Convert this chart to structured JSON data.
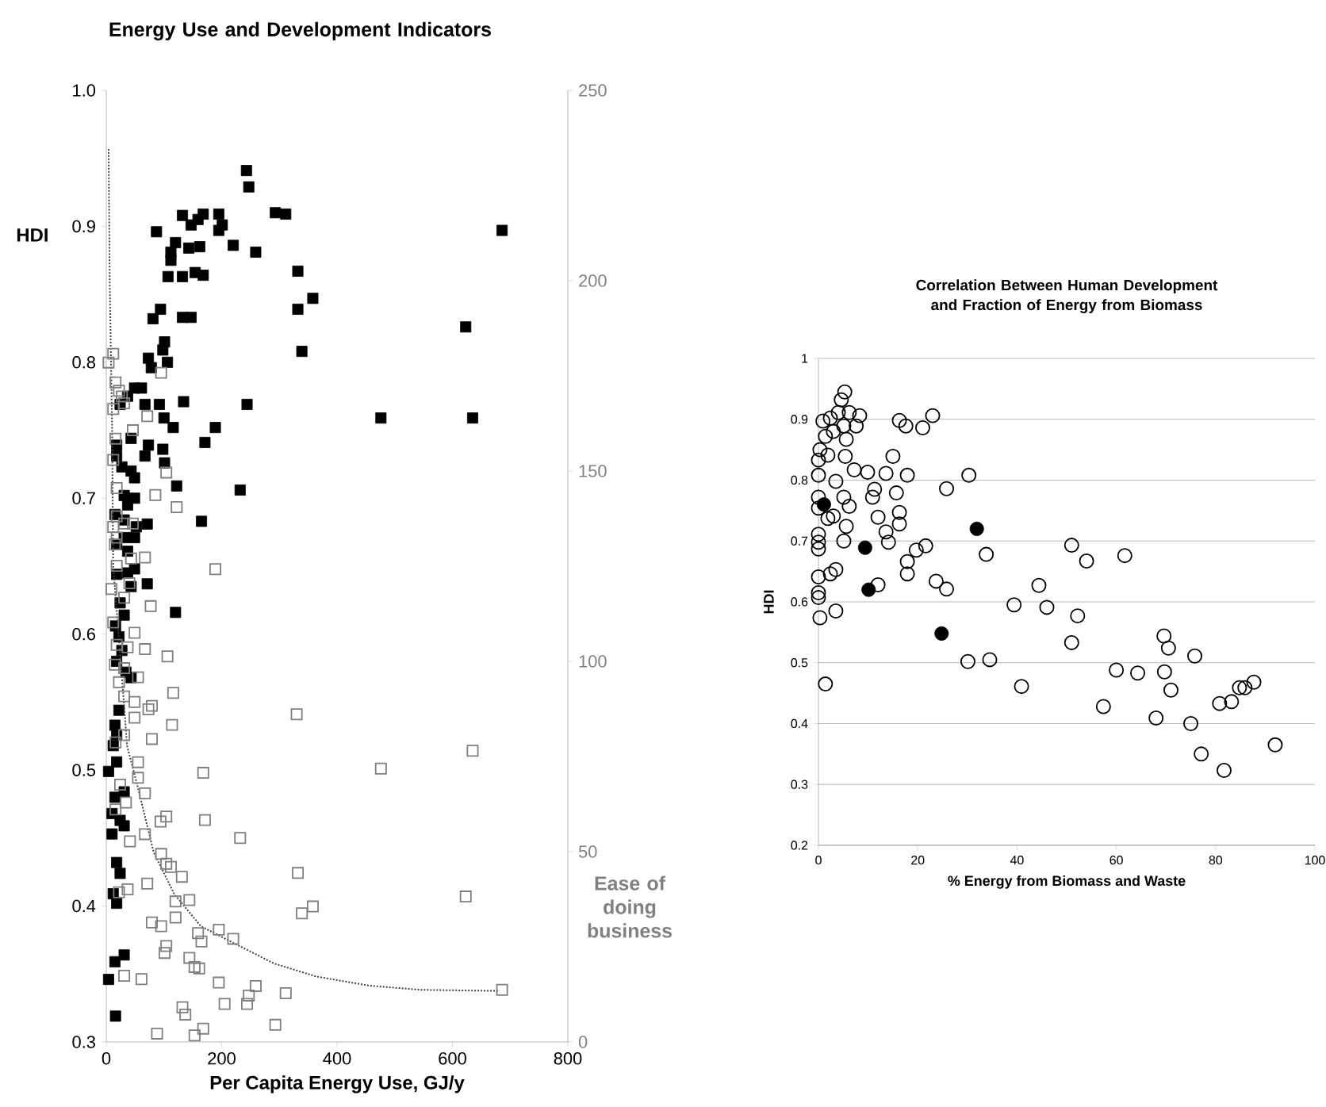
{
  "chart_data": [
    {
      "type": "scatter",
      "title": "Energy Use and Development Indicators",
      "xlabel": "Per Capita Energy Use, GJ/y",
      "ylabel": "HDI",
      "y2label": "Ease of doing business",
      "xlim": [
        0,
        800
      ],
      "xticks": [
        0,
        200,
        400,
        600,
        800
      ],
      "ylim": [
        0.3,
        1.0
      ],
      "yticks": [
        0.3,
        0.4,
        0.5,
        0.6,
        0.7,
        0.8,
        0.9,
        {
          "value": 1.0,
          "label": "1.0"
        }
      ],
      "y2lim": [
        0,
        250
      ],
      "y2ticks": [
        0,
        50,
        100,
        150,
        200,
        250
      ],
      "series": [
        {
          "axis": "y2",
          "color": "#7f7f7f",
          "marker": "square",
          "x": [
            4,
            12,
            16,
            22,
            27,
            12,
            31,
            95,
            71,
            16,
            46,
            12,
            18,
            104,
            122,
            85,
            18,
            12,
            31,
            46,
            18,
            15,
            43,
            67,
            18,
            9,
            189,
            40,
            31,
            77,
            12,
            49,
            37,
            18,
            67,
            106,
            15,
            31,
            22,
            55,
            116,
            31,
            49,
            79,
            73,
            114,
            49,
            330,
            79,
            31,
            635,
            16,
            55,
            476,
            168,
            55,
            24,
            67,
            34,
            16,
            104,
            94,
            171,
            67,
            232,
            41,
            95,
            104,
            112,
            131,
            332,
            71,
            120,
            144,
            623,
            37,
            22,
            79,
            95,
            120,
            195,
            220,
            159,
            165,
            339,
            358,
            104,
            101,
            144,
            153,
            161,
            31,
            61,
            195,
            686,
            259,
            247,
            244,
            311,
            205,
            132,
            137,
            293,
            168,
            153,
            88
          ],
          "values": [
            178.5,
            180.8,
            173.3,
            171.1,
            169.6,
            166.3,
            167.8,
            175.8,
            164.4,
            158.5,
            160.7,
            152.9,
            145.5,
            149.6,
            140.5,
            143.7,
            138.1,
            135.3,
            136.2,
            136.2,
            132.5,
            130.7,
            127.0,
            127.3,
            125.1,
            119.0,
            124.2,
            120.5,
            116.7,
            114.5,
            110.2,
            107.5,
            103.7,
            104.3,
            103.2,
            101.3,
            99.1,
            98.2,
            94.5,
            95.8,
            91.7,
            90.8,
            89.3,
            88.3,
            87.4,
            83.3,
            85.2,
            86.1,
            79.6,
            80.6,
            76.5,
            78.7,
            73.5,
            71.8,
            70.7,
            69.4,
            67.6,
            65.3,
            62.9,
            61.1,
            59.2,
            57.9,
            58.3,
            54.6,
            53.6,
            52.7,
            49.4,
            46.8,
            46.0,
            43.4,
            44.4,
            41.6,
            36.9,
            37.3,
            38.2,
            40.1,
            39.3,
            31.4,
            30.4,
            32.7,
            29.5,
            27.1,
            28.6,
            26.4,
            33.8,
            35.6,
            25.2,
            23.4,
            22.1,
            19.7,
            19.3,
            17.4,
            16.5,
            15.6,
            13.7,
            14.7,
            12.2,
            10.0,
            12.8,
            10.0,
            9.1,
            7.2,
            4.5,
            3.5,
            1.7,
            2.2
          ]
        },
        {
          "color": "#000000",
          "marker": "square",
          "x": [
            243,
            247,
            87,
            132,
            147,
            159,
            168,
            195,
            201,
            195,
            120,
            112,
            112,
            143,
            162,
            220,
            259,
            293,
            311,
            686,
            107,
            132,
            154,
            168,
            332,
            81,
            94,
            132,
            147,
            332,
            358,
            339,
            623,
            98,
            101,
            73,
            78,
            106,
            49,
            61,
            37,
            24,
            67,
            92,
            134,
            244,
            476,
            635,
            100,
            116,
            189,
            171,
            18,
            43,
            73,
            98,
            67,
            18,
            27,
            43,
            101,
            122,
            232,
            49,
            31,
            49,
            37,
            15,
            31,
            71,
            165,
            52,
            31,
            49,
            18,
            37,
            18,
            49,
            37,
            71,
            43,
            24,
            31,
            120,
            16,
            22,
            27,
            18,
            34,
            43,
            22,
            15,
            18,
            12,
            18,
            4,
            15,
            31,
            10,
            24,
            10,
            31,
            18,
            24,
            12,
            18,
            15,
            31,
            4,
            16
          ],
          "values": [
            0.941,
            0.929,
            0.896,
            0.908,
            0.901,
            0.905,
            0.909,
            0.909,
            0.901,
            0.897,
            0.888,
            0.881,
            0.875,
            0.884,
            0.885,
            0.886,
            0.881,
            0.91,
            0.909,
            0.897,
            0.863,
            0.863,
            0.866,
            0.864,
            0.867,
            0.832,
            0.839,
            0.833,
            0.833,
            0.839,
            0.847,
            0.808,
            0.826,
            0.809,
            0.815,
            0.803,
            0.796,
            0.8,
            0.781,
            0.781,
            0.775,
            0.769,
            0.769,
            0.769,
            0.771,
            0.769,
            0.759,
            0.759,
            0.759,
            0.752,
            0.752,
            0.741,
            0.739,
            0.744,
            0.739,
            0.736,
            0.731,
            0.731,
            0.723,
            0.72,
            0.726,
            0.709,
            0.706,
            0.715,
            0.702,
            0.7,
            0.695,
            0.688,
            0.684,
            0.681,
            0.683,
            0.679,
            0.671,
            0.671,
            0.666,
            0.661,
            0.644,
            0.648,
            0.645,
            0.637,
            0.635,
            0.623,
            0.614,
            0.616,
            0.606,
            0.598,
            0.588,
            0.58,
            0.572,
            0.568,
            0.544,
            0.533,
            0.526,
            0.518,
            0.506,
            0.499,
            0.48,
            0.484,
            0.468,
            0.463,
            0.453,
            0.459,
            0.432,
            0.424,
            0.409,
            0.402,
            0.359,
            0.364,
            0.346,
            0.319
          ]
        },
        {
          "type": "line",
          "axis": "y2",
          "color": "#404040",
          "line_style": "dotted",
          "marker": "none",
          "x": [
            4,
            6,
            10,
            12,
            31,
            36,
            55,
            82,
            118,
            164,
            218,
            291,
            364,
            455,
            545,
            682
          ],
          "values": [
            234.6,
            199.3,
            162.2,
            125.0,
            88.3,
            77.8,
            66.7,
            49.9,
            38.8,
            30.4,
            26.2,
            20.6,
            17.2,
            14.8,
            13.7,
            13.4
          ]
        }
      ]
    },
    {
      "type": "scatter",
      "title": "Correlation Between Human Development and Fraction of Energy from Biomass",
      "xlabel": "% Energy from Biomass and Waste",
      "ylabel": "HDI",
      "grid": "y",
      "xlim": [
        0,
        100
      ],
      "xticks": [
        0,
        20,
        40,
        60,
        80,
        100
      ],
      "ylim": [
        0.2,
        1
      ],
      "yticks": [
        0.2,
        0.3,
        0.4,
        0.5,
        0.6,
        0.7,
        0.8,
        0.9,
        1
      ],
      "series": [
        {
          "color": "#000000",
          "marker": "circle",
          "x": [
            5.3,
            4.6,
            0.9,
            2.4,
            4.0,
            6.2,
            8.3,
            7.6,
            5.1,
            3.0,
            1.4,
            5.6,
            0.3,
            1.9,
            5.4,
            0,
            16.3,
            17.6,
            21,
            23,
            0,
            7.2,
            9.9,
            13.6,
            17.9,
            30.3,
            15,
            3.5,
            11.3,
            25.8,
            15.7,
            0,
            0,
            5.1,
            10.9,
            6.2,
            1.9,
            3.0,
            12,
            16.3,
            16.3,
            5.6,
            13.6,
            14.1,
            5.1,
            0,
            0,
            0,
            19.7,
            21.6,
            17.9,
            17.9,
            2.4,
            3.5,
            0,
            0,
            0,
            12,
            23.7,
            25.8,
            33.8,
            51,
            54,
            61.7,
            0.3,
            3.5,
            39.4,
            44.4,
            46,
            52.2,
            51,
            30.1,
            34.5,
            1.4,
            40.9,
            60,
            64.3,
            57.4,
            69.6,
            70.5,
            69.7,
            71,
            75.8,
            68,
            75,
            77.1,
            80.8,
            83.2,
            84.8,
            85.9,
            87.7,
            81.7,
            92
          ],
          "values": [
            0.945,
            0.932,
            0.897,
            0.902,
            0.911,
            0.911,
            0.906,
            0.889,
            0.889,
            0.88,
            0.872,
            0.867,
            0.85,
            0.841,
            0.839,
            0.833,
            0.898,
            0.889,
            0.886,
            0.906,
            0.808,
            0.817,
            0.813,
            0.811,
            0.808,
            0.808,
            0.839,
            0.798,
            0.785,
            0.786,
            0.779,
            0.772,
            0.754,
            0.772,
            0.772,
            0.757,
            0.737,
            0.741,
            0.739,
            0.747,
            0.728,
            0.724,
            0.715,
            0.698,
            0.7,
            0.711,
            0.698,
            0.687,
            0.685,
            0.692,
            0.666,
            0.646,
            0.646,
            0.653,
            0.641,
            0.615,
            0.607,
            0.628,
            0.634,
            0.621,
            0.678,
            0.693,
            0.667,
            0.676,
            0.574,
            0.585,
            0.595,
            0.627,
            0.591,
            0.577,
            0.533,
            0.502,
            0.505,
            0.465,
            0.461,
            0.488,
            0.483,
            0.428,
            0.544,
            0.524,
            0.485,
            0.455,
            0.511,
            0.409,
            0.4,
            0.35,
            0.433,
            0.436,
            0.459,
            0.459,
            0.468,
            0.323,
            0.365
          ]
        },
        {
          "color": "#000000",
          "marker": "circle",
          "x": [
            1.1,
            9.4,
            10.1,
            31.9,
            24.8
          ],
          "values": [
            0.76,
            0.689,
            0.62,
            0.72,
            0.548
          ]
        }
      ]
    }
  ]
}
